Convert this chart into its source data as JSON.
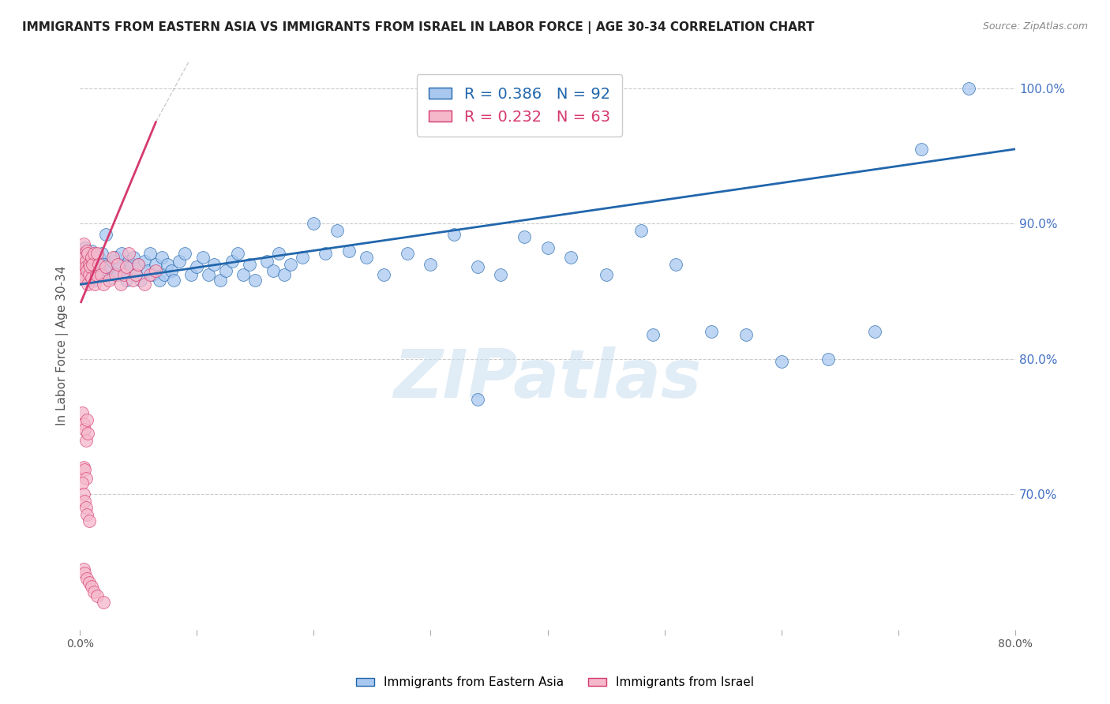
{
  "title": "IMMIGRANTS FROM EASTERN ASIA VS IMMIGRANTS FROM ISRAEL IN LABOR FORCE | AGE 30-34 CORRELATION CHART",
  "source": "Source: ZipAtlas.com",
  "ylabel": "In Labor Force | Age 30-34",
  "xlim": [
    0.0,
    0.8
  ],
  "ylim": [
    0.6,
    1.02
  ],
  "xticks": [
    0.0,
    0.1,
    0.2,
    0.3,
    0.4,
    0.5,
    0.6,
    0.7,
    0.8
  ],
  "yticks_right": [
    0.7,
    0.8,
    0.9,
    1.0
  ],
  "ytick_labels_right": [
    "70.0%",
    "80.0%",
    "90.0%",
    "100.0%"
  ],
  "blue_color": "#a8c8f0",
  "blue_line_color": "#2166ac",
  "pink_color": "#f5b8cb",
  "pink_line_color": "#d63a6e",
  "legend_R_blue": "R = 0.386",
  "legend_N_blue": "N = 92",
  "legend_R_pink": "R = 0.232",
  "legend_N_pink": "N = 63",
  "watermark": "ZIPatlas",
  "watermark_color": "#c8ddf0",
  "background_color": "#ffffff",
  "blue_x": [
    0.003,
    0.004,
    0.005,
    0.006,
    0.007,
    0.008,
    0.009,
    0.01,
    0.011,
    0.012,
    0.013,
    0.014,
    0.015,
    0.016,
    0.017,
    0.018,
    0.019,
    0.02,
    0.022,
    0.024,
    0.025,
    0.026,
    0.028,
    0.03,
    0.032,
    0.034,
    0.036,
    0.038,
    0.04,
    0.042,
    0.044,
    0.046,
    0.048,
    0.05,
    0.052,
    0.055,
    0.058,
    0.06,
    0.062,
    0.065,
    0.068,
    0.07,
    0.072,
    0.075,
    0.078,
    0.08,
    0.085,
    0.09,
    0.095,
    0.1,
    0.105,
    0.11,
    0.115,
    0.12,
    0.125,
    0.13,
    0.135,
    0.14,
    0.145,
    0.15,
    0.16,
    0.165,
    0.17,
    0.175,
    0.18,
    0.19,
    0.2,
    0.21,
    0.22,
    0.23,
    0.245,
    0.26,
    0.28,
    0.3,
    0.32,
    0.34,
    0.36,
    0.38,
    0.4,
    0.42,
    0.45,
    0.48,
    0.51,
    0.54,
    0.57,
    0.6,
    0.64,
    0.68,
    0.72,
    0.76,
    0.34,
    0.49
  ],
  "blue_y": [
    0.878,
    0.882,
    0.875,
    0.868,
    0.862,
    0.858,
    0.872,
    0.88,
    0.865,
    0.876,
    0.858,
    0.862,
    0.868,
    0.875,
    0.87,
    0.862,
    0.878,
    0.87,
    0.892,
    0.865,
    0.868,
    0.86,
    0.872,
    0.875,
    0.862,
    0.87,
    0.878,
    0.865,
    0.858,
    0.872,
    0.868,
    0.875,
    0.862,
    0.87,
    0.858,
    0.872,
    0.865,
    0.878,
    0.862,
    0.87,
    0.858,
    0.875,
    0.862,
    0.87,
    0.865,
    0.858,
    0.872,
    0.878,
    0.862,
    0.868,
    0.875,
    0.862,
    0.87,
    0.858,
    0.865,
    0.872,
    0.878,
    0.862,
    0.87,
    0.858,
    0.872,
    0.865,
    0.878,
    0.862,
    0.87,
    0.875,
    0.9,
    0.878,
    0.895,
    0.88,
    0.875,
    0.862,
    0.878,
    0.87,
    0.892,
    0.868,
    0.862,
    0.89,
    0.882,
    0.875,
    0.862,
    0.895,
    0.87,
    0.82,
    0.818,
    0.798,
    0.8,
    0.82,
    0.955,
    1.0,
    0.77,
    0.818
  ],
  "pink_x": [
    0.002,
    0.002,
    0.003,
    0.003,
    0.004,
    0.004,
    0.005,
    0.005,
    0.006,
    0.006,
    0.007,
    0.007,
    0.008,
    0.008,
    0.009,
    0.01,
    0.01,
    0.011,
    0.012,
    0.013,
    0.014,
    0.015,
    0.016,
    0.018,
    0.02,
    0.022,
    0.025,
    0.028,
    0.03,
    0.032,
    0.035,
    0.038,
    0.04,
    0.042,
    0.045,
    0.048,
    0.05,
    0.055,
    0.06,
    0.065,
    0.002,
    0.003,
    0.004,
    0.005,
    0.006,
    0.007,
    0.003,
    0.004,
    0.005,
    0.002,
    0.003,
    0.004,
    0.005,
    0.006,
    0.008,
    0.003,
    0.004,
    0.006,
    0.008,
    0.01,
    0.012,
    0.015,
    0.02
  ],
  "pink_y": [
    0.878,
    0.87,
    0.885,
    0.862,
    0.875,
    0.86,
    0.872,
    0.868,
    0.88,
    0.865,
    0.855,
    0.878,
    0.862,
    0.87,
    0.868,
    0.875,
    0.86,
    0.87,
    0.878,
    0.855,
    0.862,
    0.878,
    0.87,
    0.862,
    0.855,
    0.868,
    0.858,
    0.875,
    0.862,
    0.87,
    0.855,
    0.862,
    0.868,
    0.878,
    0.858,
    0.862,
    0.87,
    0.855,
    0.862,
    0.865,
    0.76,
    0.752,
    0.748,
    0.74,
    0.755,
    0.745,
    0.72,
    0.718,
    0.712,
    0.708,
    0.7,
    0.695,
    0.69,
    0.685,
    0.68,
    0.645,
    0.642,
    0.638,
    0.635,
    0.632,
    0.628,
    0.625,
    0.62
  ],
  "blue_R": 0.386,
  "pink_R": 0.232,
  "title_fontsize": 11,
  "source_fontsize": 9,
  "tick_color_right": "#4472c4",
  "grid_color": "#cccccc",
  "grid_style": "--"
}
